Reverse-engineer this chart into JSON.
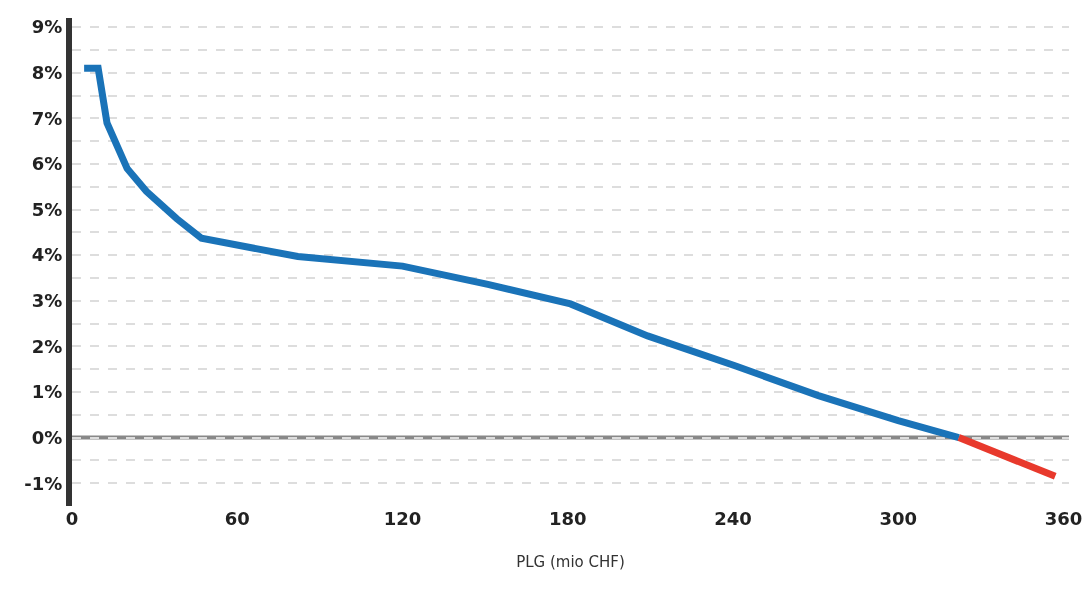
{
  "chart_data": {
    "type": "line",
    "xlabel": "PLG (mio CHF)",
    "xlim": [
      0,
      362
    ],
    "xticks": [
      0,
      60,
      120,
      180,
      240,
      300,
      360
    ],
    "ylim": [
      -1.5,
      9.2
    ],
    "yticks": [
      {
        "value": -1,
        "label": "-1%"
      },
      {
        "value": -0.5,
        "label": null
      },
      {
        "value": 0,
        "label": "0%"
      },
      {
        "value": 0.5,
        "label": null
      },
      {
        "value": 1,
        "label": "1%"
      },
      {
        "value": 1.5,
        "label": null
      },
      {
        "value": 2,
        "label": "2%"
      },
      {
        "value": 2.5,
        "label": null
      },
      {
        "value": 3,
        "label": "3%"
      },
      {
        "value": 3.5,
        "label": null
      },
      {
        "value": 4,
        "label": "4%"
      },
      {
        "value": 4.5,
        "label": null
      },
      {
        "value": 5,
        "label": "5%"
      },
      {
        "value": 5.5,
        "label": null
      },
      {
        "value": 6,
        "label": "6%"
      },
      {
        "value": 6.5,
        "label": null
      },
      {
        "value": 7,
        "label": "7%"
      },
      {
        "value": 7.5,
        "label": null
      },
      {
        "value": 8,
        "label": "8%"
      },
      {
        "value": 8.5,
        "label": null
      },
      {
        "value": 9,
        "label": "9%"
      }
    ],
    "grid": "y",
    "marker": "none",
    "line_style": "solid",
    "series": [
      {
        "color": "#1a73b8",
        "x": [
          4.4,
          9.5,
          12.7,
          20,
          27,
          38,
          47,
          82,
          120,
          151,
          181,
          209,
          241,
          271,
          300,
          322
        ],
        "values": [
          8.1,
          8.1,
          6.9,
          5.9,
          5.4,
          4.8,
          4.37,
          3.97,
          3.76,
          3.36,
          2.93,
          2.23,
          1.57,
          0.92,
          0.37,
          0
        ]
      },
      {
        "color": "#e8392c",
        "x": [
          322,
          357
        ],
        "values": [
          0,
          -0.85
        ]
      }
    ],
    "ref_lines": [
      {
        "axis": "y",
        "value": 0,
        "label": null,
        "color": "#888888",
        "line_style": "solid"
      }
    ]
  }
}
